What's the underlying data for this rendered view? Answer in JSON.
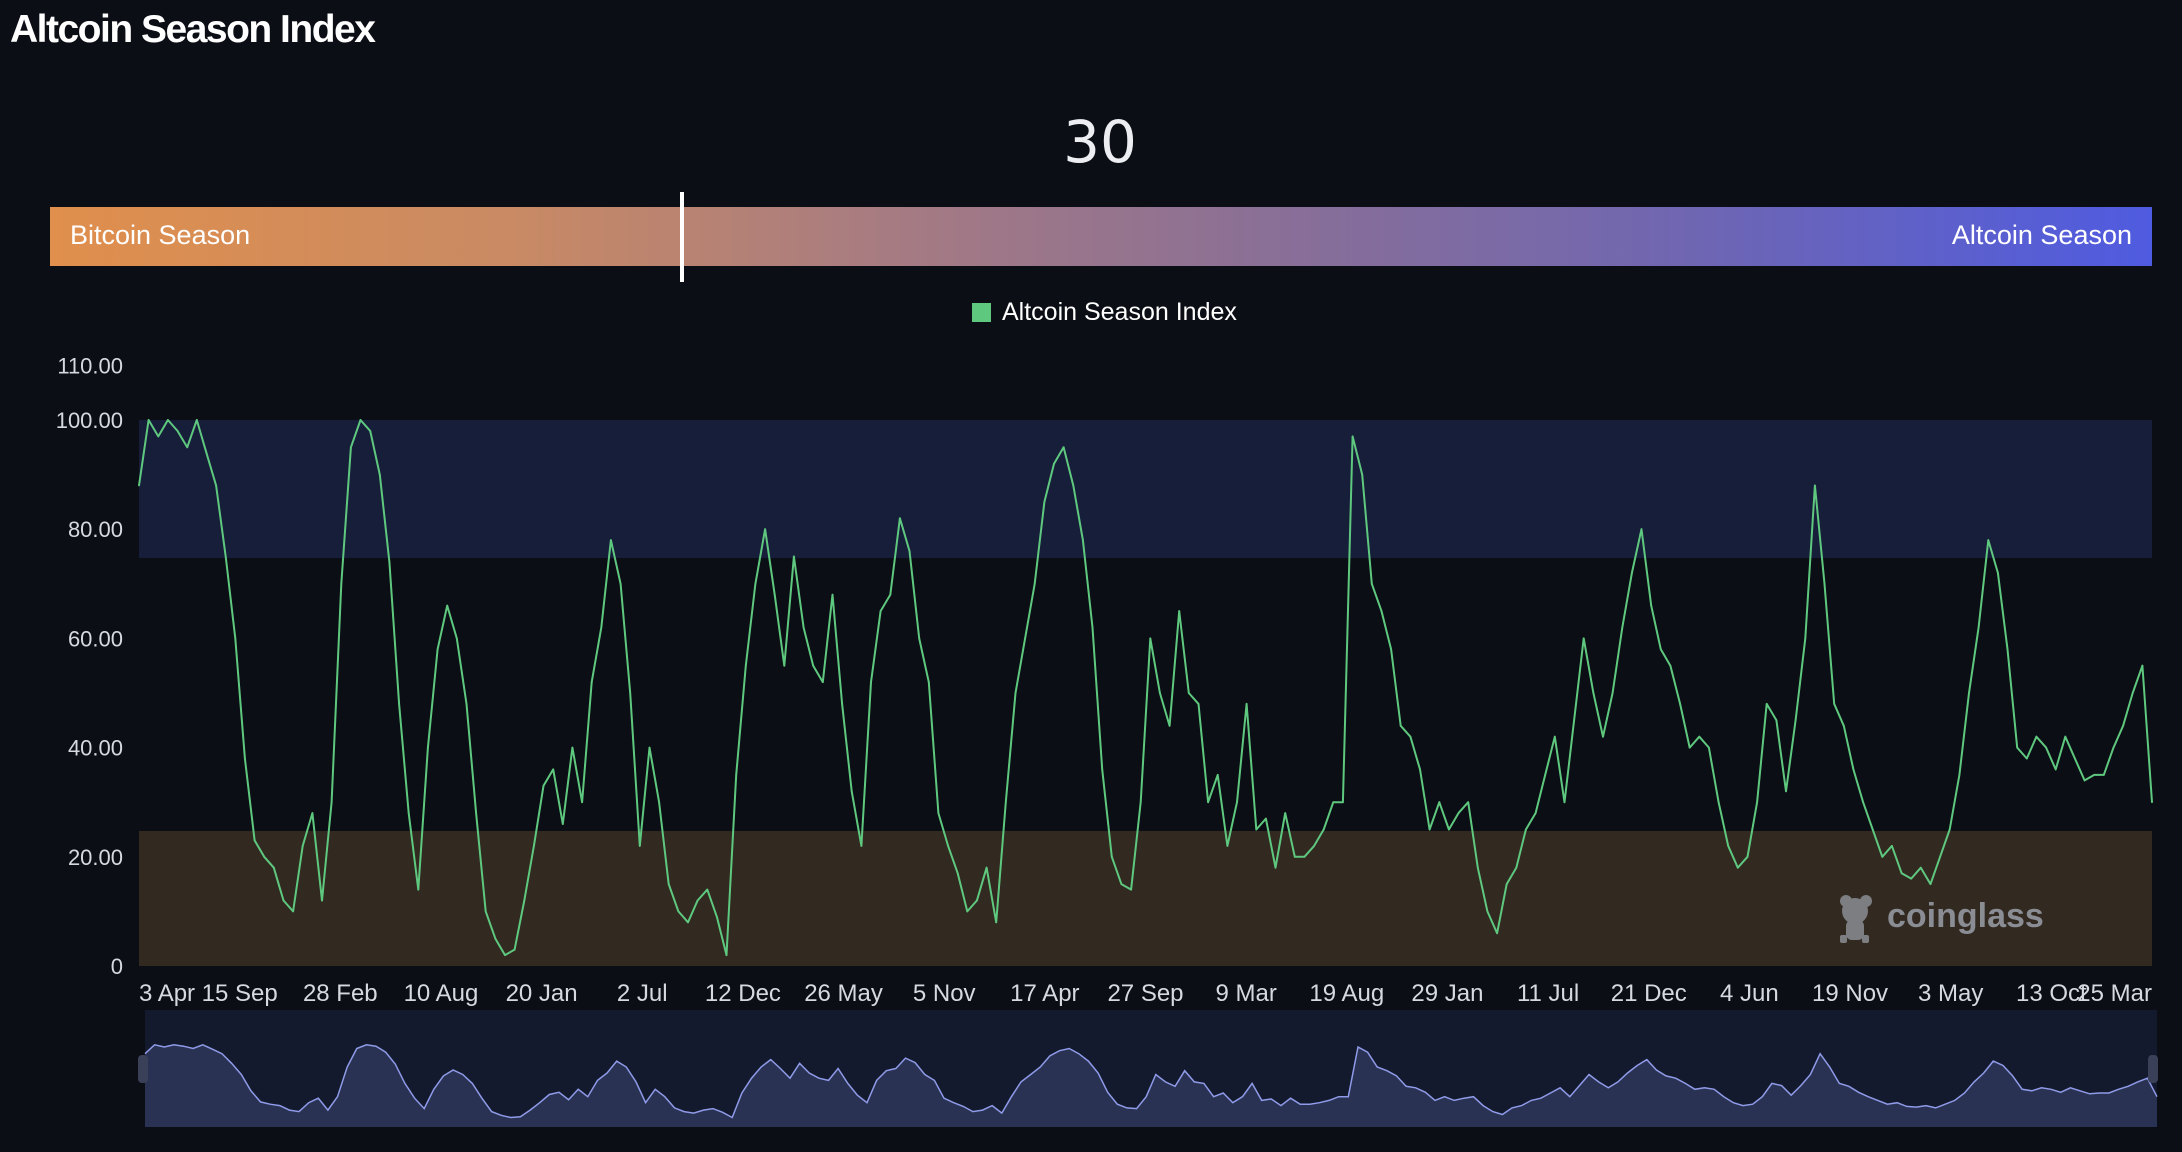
{
  "page": {
    "title": "Altcoin Season Index"
  },
  "gauge": {
    "value": "30",
    "left_label": "Bitcoin Season",
    "right_label": "Altcoin Season"
  },
  "colors": {
    "line": "#5fc87f",
    "altcoin_band": "#171e3a",
    "bitcoin_band": "#322921",
    "navigator_fill": "#2a3254",
    "navigator_line": "#8f9be8",
    "gauge_start": "#e08f4c",
    "gauge_end": "#4f5be0"
  },
  "watermark": {
    "text": "coinglass",
    "icon": "coinglass-logo-icon"
  },
  "chart_data": {
    "type": "line",
    "series": [
      {
        "name": "Altcoin Season Index",
        "x_domain": [
          0,
          186
        ],
        "y": [
          88,
          100,
          97,
          100,
          98,
          95,
          100,
          94,
          88,
          75,
          60,
          38,
          23,
          20,
          18,
          12,
          10,
          22,
          28,
          12,
          30,
          70,
          95,
          100,
          98,
          90,
          74,
          48,
          28,
          14,
          40,
          58,
          66,
          60,
          48,
          28,
          10,
          5,
          2,
          3,
          12,
          22,
          33,
          36,
          26,
          40,
          30,
          52,
          62,
          78,
          70,
          50,
          22,
          40,
          30,
          15,
          10,
          8,
          12,
          14,
          9,
          2,
          35,
          55,
          70,
          80,
          68,
          55,
          75,
          62,
          55,
          52,
          68,
          48,
          32,
          22,
          52,
          65,
          68,
          82,
          76,
          60,
          52,
          28,
          22,
          17,
          10,
          12,
          18,
          8,
          30,
          50,
          60,
          70,
          85,
          92,
          95,
          88,
          78,
          62,
          36,
          20,
          15,
          14,
          30,
          60,
          50,
          44,
          65,
          50,
          48,
          30,
          35,
          22,
          30,
          48,
          25,
          27,
          18,
          28,
          20,
          20,
          22,
          25,
          30,
          30,
          97,
          90,
          70,
          65,
          58,
          44,
          42,
          36,
          25,
          30,
          25,
          28,
          30,
          18,
          10,
          6,
          15,
          18,
          25,
          28,
          35,
          42,
          30,
          45,
          60,
          50,
          42,
          50,
          62,
          72,
          80,
          66,
          58,
          55,
          48,
          40,
          42,
          40,
          30,
          22,
          18,
          20,
          30,
          48,
          45,
          32,
          45,
          60,
          88,
          70,
          48,
          44,
          36,
          30,
          25,
          20,
          22,
          17,
          16,
          18,
          15,
          20,
          25,
          35,
          50,
          62,
          78,
          72,
          58,
          40,
          38,
          42,
          40,
          36,
          42,
          38,
          34,
          35,
          35,
          40,
          44,
          50,
          55,
          30
        ]
      }
    ],
    "x_tick_labels": [
      "3 Apr",
      "15 Sep",
      "28 Feb",
      "10 Aug",
      "20 Jan",
      "2 Jul",
      "12 Dec",
      "26 May",
      "5 Nov",
      "17 Apr",
      "27 Sep",
      "9 Mar",
      "19 Aug",
      "29 Jan",
      "11 Jul",
      "21 Dec",
      "4 Jun",
      "19 Nov",
      "3 May",
      "13 Oct",
      "25 Mar"
    ],
    "y_tick_labels": [
      "0",
      "20.00",
      "40.00",
      "60.00",
      "80.00",
      "100.00",
      "110.00"
    ],
    "y_ticks": [
      0,
      20,
      40,
      60,
      80,
      100,
      110
    ],
    "ylim": [
      0,
      110
    ],
    "bands": [
      {
        "from": 75,
        "to": 100,
        "meaning": "altcoin season"
      },
      {
        "from": 0,
        "to": 25,
        "meaning": "bitcoin season"
      }
    ],
    "grid": false,
    "legend_position": "top-center"
  }
}
